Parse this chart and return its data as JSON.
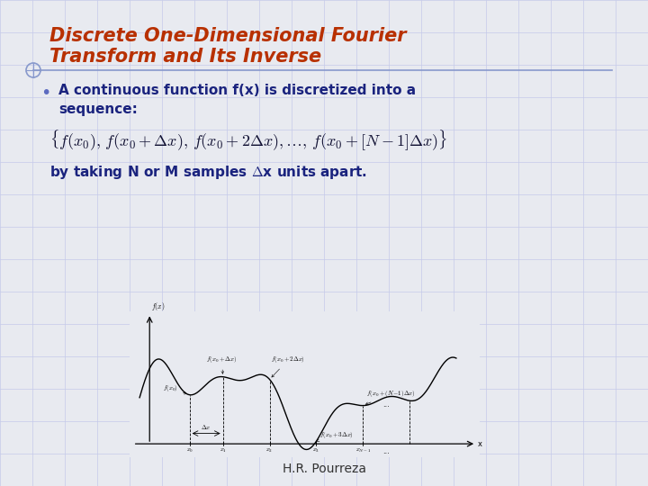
{
  "background_color": "#e8eaf0",
  "title_line1": "Discrete One-Dimensional Fourier",
  "title_line2": "Transform and Its Inverse",
  "title_color": "#b83000",
  "bullet_color": "#1a237e",
  "footer": "H.R. Pourreza",
  "grid_color": "#c5cae9",
  "text_dark": "#1a237e",
  "title_fontsize": 15,
  "body_fontsize": 11,
  "formula_fontsize": 13
}
